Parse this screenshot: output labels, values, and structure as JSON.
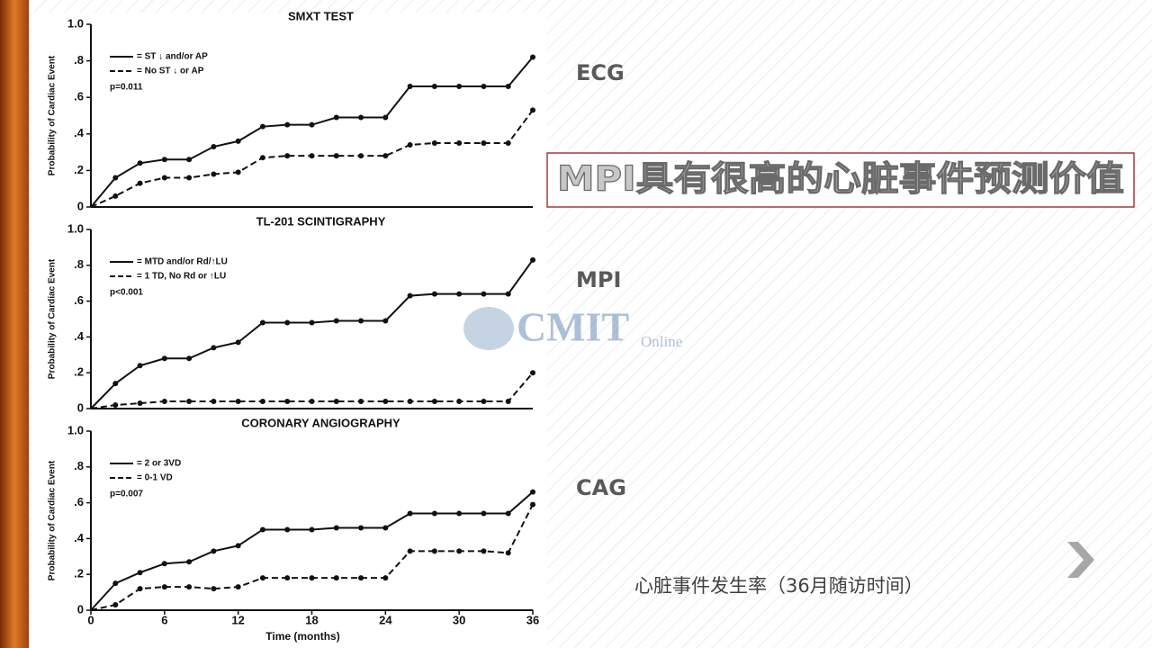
{
  "slide": {
    "headline": "MPI具有很高的心脏事件预测价值",
    "labels": [
      "ECG",
      "MPI",
      "CAG"
    ],
    "caption": "心脏事件发生率（36月随访时间）",
    "watermark": "CMIT",
    "watermark_sub": "Online"
  },
  "chart_data": [
    {
      "type": "line",
      "title": "SMXT TEST",
      "y_label": "Probability of Cardiac Event",
      "x": [
        0,
        2,
        4,
        6,
        8,
        10,
        12,
        14,
        16,
        18,
        20,
        22,
        24,
        26,
        28,
        30,
        32,
        34,
        36
      ],
      "xlim": [
        0,
        36
      ],
      "ylim": [
        0,
        1
      ],
      "yticks": [
        0,
        {
          "value": 0.2,
          "label": ".2"
        },
        {
          "value": 0.4,
          "label": ".4"
        },
        {
          "value": 0.6,
          "label": ".6"
        },
        {
          "value": 0.8,
          "label": ".8"
        },
        {
          "value": 1,
          "label": "1.0"
        }
      ],
      "annotation": "p=0.011",
      "series": [
        {
          "name": "= ST ↓ and/or AP",
          "color": "#111111",
          "dashed": false,
          "values": [
            0,
            0.16,
            0.24,
            0.26,
            0.26,
            0.33,
            0.36,
            0.44,
            0.45,
            0.45,
            0.49,
            0.49,
            0.49,
            0.66,
            0.66,
            0.66,
            0.66,
            0.66,
            0.82
          ]
        },
        {
          "name": "= No ST ↓ or AP",
          "color": "#111111",
          "dashed": true,
          "values": [
            0,
            0.06,
            0.13,
            0.16,
            0.16,
            0.18,
            0.19,
            0.27,
            0.28,
            0.28,
            0.28,
            0.28,
            0.28,
            0.34,
            0.35,
            0.35,
            0.35,
            0.35,
            0.53
          ]
        }
      ]
    },
    {
      "type": "line",
      "title": "TL-201 SCINTIGRAPHY",
      "y_label": "Probability of Cardiac Event",
      "x": [
        0,
        2,
        4,
        6,
        8,
        10,
        12,
        14,
        16,
        18,
        20,
        22,
        24,
        26,
        28,
        30,
        32,
        34,
        36
      ],
      "xlim": [
        0,
        36
      ],
      "ylim": [
        0,
        1
      ],
      "yticks": [
        0,
        {
          "value": 0.2,
          "label": ".2"
        },
        {
          "value": 0.4,
          "label": ".4"
        },
        {
          "value": 0.6,
          "label": ".6"
        },
        {
          "value": 0.8,
          "label": ".8"
        },
        {
          "value": 1,
          "label": "1.0"
        }
      ],
      "annotation": "p<0.001",
      "series": [
        {
          "name": "= MTD and/or Rd/↑LU",
          "color": "#111111",
          "dashed": false,
          "values": [
            0,
            0.14,
            0.24,
            0.28,
            0.28,
            0.34,
            0.37,
            0.48,
            0.48,
            0.48,
            0.49,
            0.49,
            0.49,
            0.63,
            0.64,
            0.64,
            0.64,
            0.64,
            0.83
          ]
        },
        {
          "name": "= 1 TD, No Rd or ↑LU",
          "color": "#111111",
          "dashed": true,
          "values": [
            0,
            0.02,
            0.03,
            0.04,
            0.04,
            0.04,
            0.04,
            0.04,
            0.04,
            0.04,
            0.04,
            0.04,
            0.04,
            0.04,
            0.04,
            0.04,
            0.04,
            0.04,
            0.2
          ]
        }
      ]
    },
    {
      "type": "line",
      "title": "CORONARY ANGIOGRAPHY",
      "y_label": "Probability of Cardiac Event",
      "x_label": "Time (months)",
      "x": [
        0,
        2,
        4,
        6,
        8,
        10,
        12,
        14,
        16,
        18,
        20,
        22,
        24,
        26,
        28,
        30,
        32,
        34,
        36
      ],
      "xlim": [
        0,
        36
      ],
      "xticks": [
        0,
        6,
        12,
        18,
        24,
        30,
        36
      ],
      "ylim": [
        0,
        1
      ],
      "yticks": [
        0,
        {
          "value": 0.2,
          "label": ".2"
        },
        {
          "value": 0.4,
          "label": ".4"
        },
        {
          "value": 0.6,
          "label": ".6"
        },
        {
          "value": 0.8,
          "label": ".8"
        },
        {
          "value": 1,
          "label": "1.0"
        }
      ],
      "annotation": "p=0.007",
      "series": [
        {
          "name": "= 2 or 3VD",
          "color": "#111111",
          "dashed": false,
          "values": [
            0,
            0.15,
            0.21,
            0.26,
            0.27,
            0.33,
            0.36,
            0.45,
            0.45,
            0.45,
            0.46,
            0.46,
            0.46,
            0.54,
            0.54,
            0.54,
            0.54,
            0.54,
            0.66
          ]
        },
        {
          "name": "= 0-1 VD",
          "color": "#111111",
          "dashed": true,
          "values": [
            0,
            0.03,
            0.12,
            0.13,
            0.13,
            0.12,
            0.13,
            0.18,
            0.18,
            0.18,
            0.18,
            0.18,
            0.18,
            0.33,
            0.33,
            0.33,
            0.33,
            0.32,
            0.59
          ]
        }
      ]
    }
  ]
}
